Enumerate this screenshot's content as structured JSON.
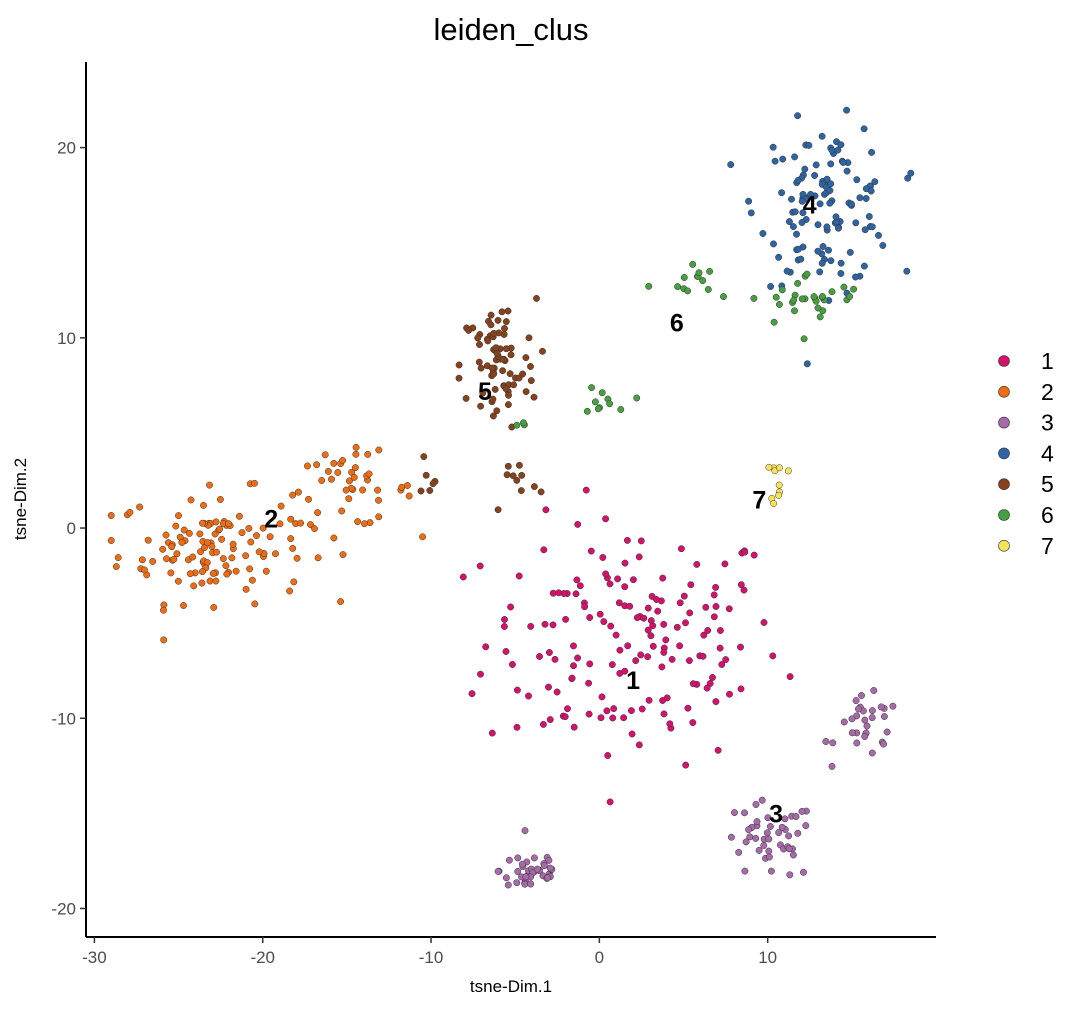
{
  "chart_data": {
    "type": "scatter",
    "title": "leiden_clus",
    "xlabel": "tsne-Dim.1",
    "ylabel": "tsne-Dim.2",
    "xlim": [
      -30.5,
      20
    ],
    "ylim": [
      -21.5,
      24.5
    ],
    "xticks": [
      -30,
      -20,
      -10,
      0,
      10
    ],
    "yticks": [
      -20,
      -10,
      0,
      10,
      20
    ],
    "grid": false,
    "legend_position": "right",
    "series": [
      {
        "name": "1",
        "color": "#d4126e",
        "label_pos": [
          2,
          -8
        ],
        "clusters": [
          {
            "cx": 2,
            "cy": -6,
            "sx": 5.5,
            "sy": 4,
            "n": 165
          }
        ]
      },
      {
        "name": "2",
        "color": "#ee6d14",
        "label_pos": [
          -19.5,
          0.5
        ],
        "clusters": [
          {
            "cx": -23,
            "cy": -1,
            "sx": 3.5,
            "sy": 1.8,
            "n": 120
          },
          {
            "cx": -15,
            "cy": 2,
            "sx": 2.5,
            "sy": 1.2,
            "n": 45
          }
        ]
      },
      {
        "name": "3",
        "color": "#a66aa8",
        "label_pos": [
          10.5,
          -15
        ],
        "clusters": [
          {
            "cx": -4,
            "cy": -18,
            "sx": 1.2,
            "sy": 0.8,
            "n": 40
          },
          {
            "cx": 10,
            "cy": -16.5,
            "sx": 1.8,
            "sy": 1.3,
            "n": 45
          },
          {
            "cx": 16,
            "cy": -10.5,
            "sx": 1.2,
            "sy": 1.0,
            "n": 30
          }
        ]
      },
      {
        "name": "4",
        "color": "#2e64a1",
        "label_pos": [
          12.5,
          17
        ],
        "clusters": [
          {
            "cx": 13.5,
            "cy": 17,
            "sx": 2.5,
            "sy": 2.6,
            "n": 120
          }
        ]
      },
      {
        "name": "5",
        "color": "#85421c",
        "label_pos": [
          -6.8,
          7.2
        ],
        "clusters": [
          {
            "cx": -6,
            "cy": 8.5,
            "sx": 1.4,
            "sy": 2.2,
            "n": 75
          },
          {
            "cx": -5,
            "cy": 2.5,
            "sx": 0.9,
            "sy": 1.2,
            "n": 10
          },
          {
            "cx": -10,
            "cy": 3,
            "sx": 0.6,
            "sy": 1.0,
            "n": 6
          }
        ]
      },
      {
        "name": "6",
        "color": "#47a040",
        "label_pos": [
          4.6,
          10.8
        ],
        "clusters": [
          {
            "cx": 12.5,
            "cy": 12,
            "sx": 2.2,
            "sy": 0.9,
            "n": 30
          },
          {
            "cx": 5,
            "cy": 13,
            "sx": 1.2,
            "sy": 0.6,
            "n": 12
          },
          {
            "cx": 0.5,
            "cy": 6.8,
            "sx": 0.9,
            "sy": 0.5,
            "n": 10
          },
          {
            "cx": -4.5,
            "cy": 5.5,
            "sx": 0.2,
            "sy": 0.1,
            "n": 3
          }
        ]
      },
      {
        "name": "7",
        "color": "#f7e35a",
        "label_pos": [
          9.5,
          1.5
        ],
        "clusters": [
          {
            "cx": 10.7,
            "cy": 2.5,
            "sx": 0.3,
            "sy": 0.8,
            "n": 10
          }
        ]
      }
    ]
  }
}
